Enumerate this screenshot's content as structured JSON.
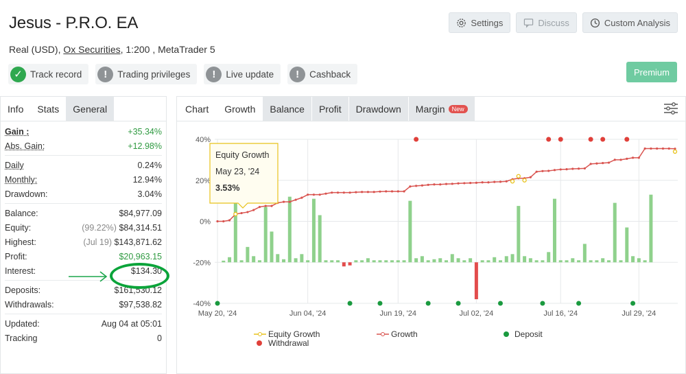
{
  "header": {
    "title": "Jesus - P.R.O. EA",
    "account_type": "Real (USD),",
    "broker": "Ox Securities",
    "leverage_platform": ", 1:200 , MetaTrader 5"
  },
  "top_buttons": {
    "settings": "Settings",
    "discuss": "Discuss",
    "custom_analysis": "Custom Analysis"
  },
  "badges": {
    "track_record": "Track record",
    "trading_privileges": "Trading privileges",
    "live_update": "Live update",
    "cashback": "Cashback"
  },
  "premium_label": "Premium",
  "left_tabs": {
    "info": "Info",
    "stats": "Stats",
    "general": "General"
  },
  "stats": {
    "gain_label": "Gain :",
    "gain": "+35.34%",
    "abs_gain_label": "Abs. Gain:",
    "abs_gain": "+12.98%",
    "daily_label": "Daily",
    "daily": "0.24%",
    "monthly_label": "Monthly:",
    "monthly": "12.94%",
    "drawdown_label": "Drawdown:",
    "drawdown": "3.04%",
    "balance_label": "Balance:",
    "balance": "$84,977.09",
    "equity_label": "Equity:",
    "equity_pct": "(99.22%)",
    "equity": "$84,314.51",
    "highest_label": "Highest:",
    "highest_date": "(Jul 19)",
    "highest": "$143,871.62",
    "profit_label": "Profit:",
    "profit": "$20,963.15",
    "interest_label": "Interest:",
    "interest": "$134.30",
    "deposits_label": "Deposits:",
    "deposits": "$161,530.12",
    "withdrawals_label": "Withdrawals:",
    "withdrawals": "$97,538.82",
    "updated_label": "Updated:",
    "updated": "Aug 04 at 05:01",
    "tracking_label": "Tracking",
    "tracking": "0"
  },
  "chart_tabs": {
    "chart": "Chart",
    "growth": "Growth",
    "balance": "Balance",
    "profit": "Profit",
    "drawdown": "Drawdown",
    "margin": "Margin",
    "new_badge": "New"
  },
  "tooltip": {
    "title": "Equity Growth",
    "date": "May 23, '24",
    "value": "3.53%"
  },
  "legend": {
    "equity_growth": "Equity Growth",
    "growth": "Growth",
    "deposit": "Deposit",
    "withdrawal": "Withdrawal"
  },
  "colors": {
    "green_text": "#2f9a41",
    "growth_line": "#d9534f",
    "equity_line": "#e8c21a",
    "bar_pos": "#8fd18c",
    "bar_neg": "#e24c4c",
    "deposit": "#1a9a3f",
    "withdrawal": "#e0403a"
  },
  "chart_data": {
    "type": "line",
    "y_ticks": [
      "40%",
      "20%",
      "0%",
      "-20%",
      "-40%"
    ],
    "ylim": [
      -40,
      40
    ],
    "x_ticks": [
      "May 20, '24",
      "Jun 04, '24",
      "Jun 19, '24",
      "Jul 02, '24",
      "Jul 16, '24",
      "Jul 29, '24"
    ],
    "x_tick_days": [
      0,
      15,
      30,
      43,
      57,
      70
    ],
    "growth_days": [
      0,
      1,
      2,
      3,
      4,
      5,
      6,
      7,
      8,
      9,
      10,
      11,
      12,
      13,
      14,
      15,
      16,
      17,
      18,
      19,
      20,
      21,
      22,
      23,
      24,
      25,
      26,
      27,
      28,
      29,
      30,
      31,
      32,
      33,
      34,
      35,
      36,
      37,
      38,
      39,
      40,
      41,
      42,
      43,
      44,
      45,
      46,
      47,
      48,
      49,
      50,
      51,
      52,
      53,
      54,
      55,
      56,
      57,
      58,
      59,
      60,
      61,
      62,
      63,
      64,
      65,
      66,
      67,
      68,
      69,
      70,
      71,
      72,
      73,
      74,
      75,
      76
    ],
    "growth_values": [
      0,
      0,
      0.5,
      3.5,
      4,
      4.5,
      5.5,
      7,
      7.5,
      7.5,
      9,
      9.5,
      9.5,
      10.5,
      11.5,
      13,
      13,
      13,
      13.5,
      14,
      14,
      14,
      14,
      14.2,
      14.3,
      14.3,
      14.3,
      14.5,
      14.6,
      14.6,
      14.6,
      14.6,
      17,
      17.3,
      17.5,
      17.8,
      18,
      18,
      18.2,
      18.3,
      18.5,
      18.6,
      18.7,
      18.8,
      19,
      19,
      19.2,
      19.3,
      19.5,
      20.5,
      21,
      21,
      21.5,
      24.2,
      24.5,
      24.6,
      25,
      25.3,
      25.4,
      25.6,
      25.7,
      25.8,
      28,
      28.2,
      28.4,
      28.6,
      30,
      30,
      30.5,
      31,
      31,
      35.5,
      35.5,
      35.5,
      35.5,
      35.5,
      35.4
    ],
    "equity_growth_days": [
      3,
      49,
      50,
      51,
      76
    ],
    "equity_growth_values": [
      3.53,
      19.5,
      22,
      20,
      34
    ],
    "bar_days": [
      1,
      2,
      3,
      4,
      5,
      6,
      7,
      8,
      9,
      10,
      11,
      12,
      13,
      14,
      15,
      16,
      17,
      18,
      19,
      20,
      21,
      22,
      23,
      24,
      25,
      26,
      27,
      28,
      29,
      30,
      31,
      32,
      33,
      34,
      35,
      36,
      37,
      38,
      39,
      40,
      41,
      42,
      43,
      44,
      45,
      46,
      47,
      48,
      49,
      50,
      51,
      52,
      53,
      54,
      55,
      56,
      57,
      58,
      59,
      60,
      61,
      62,
      63,
      64,
      65,
      66,
      67,
      68,
      69,
      70,
      71,
      72
    ],
    "bar_values": [
      0.8,
      2.5,
      31,
      1,
      7.5,
      3,
      1,
      27,
      15,
      4,
      1.5,
      32,
      2,
      4,
      1,
      31,
      23,
      1,
      1,
      1,
      -2,
      -1.5,
      1,
      1,
      2,
      1,
      1,
      1,
      1,
      1,
      1,
      30,
      2,
      3,
      1,
      1.5,
      2,
      1,
      4,
      2,
      1,
      2,
      -18,
      1,
      1,
      2.5,
      1,
      3,
      4,
      27.5,
      3,
      2,
      1,
      1,
      5,
      31,
      1,
      1,
      2,
      1,
      9,
      1,
      1,
      2,
      1,
      29,
      1,
      17,
      3,
      2,
      1,
      33
    ],
    "deposit_days": [
      0,
      22,
      27,
      35,
      40,
      47,
      54,
      60,
      69
    ],
    "deposit_y": -40,
    "withdrawal_days": [
      33,
      55,
      57,
      62,
      64,
      68
    ],
    "withdrawal_y": 40,
    "series": [
      {
        "name": "Equity Growth"
      },
      {
        "name": "Growth"
      },
      {
        "name": "Deposit"
      },
      {
        "name": "Withdrawal"
      }
    ]
  }
}
